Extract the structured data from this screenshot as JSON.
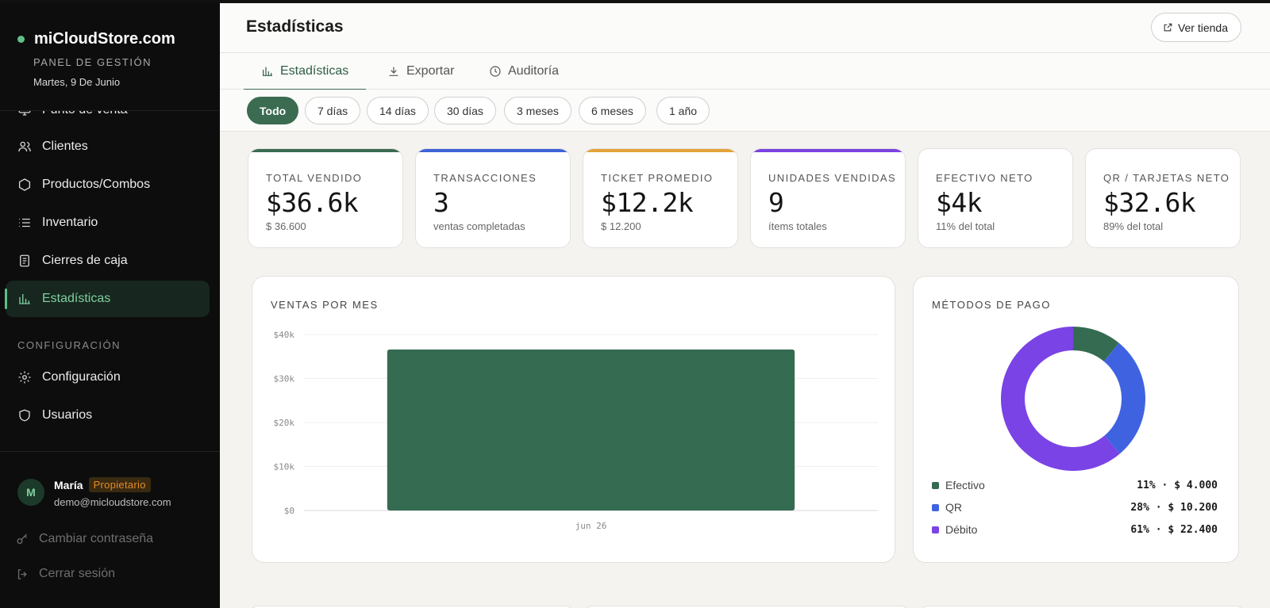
{
  "sidebar": {
    "brand": "miCloudStore.com",
    "subtitle": "PANEL DE GESTIÓN",
    "date": "Martes, 9 De Junio",
    "nav": {
      "punto_venta": "Punto de venta",
      "clientes": "Clientes",
      "productos": "Productos/Combos",
      "inventario": "Inventario",
      "cierres": "Cierres de caja",
      "estadisticas": "Estadísticas"
    },
    "config_section": "CONFIGURACIÓN",
    "config_nav": {
      "configuracion": "Configuración",
      "usuarios": "Usuarios"
    },
    "user": {
      "initial": "M",
      "name": "María",
      "role": "Propietario",
      "email": "demo@micloudstore.com"
    },
    "change_password": "Cambiar contraseña",
    "logout": "Cerrar sesión"
  },
  "header": {
    "title": "Estadísticas",
    "store_button": "Ver tienda"
  },
  "tabs": {
    "estadisticas": "Estadísticas",
    "exportar": "Exportar",
    "auditoria": "Auditoría"
  },
  "filters": [
    "Todo",
    "7 días",
    "14 días",
    "30 días",
    "3 meses",
    "6 meses",
    "1 año"
  ],
  "kpis": [
    {
      "label": "TOTAL VENDIDO",
      "value": "$36.6k",
      "sub": "$ 36.600",
      "color": "#3b6b51"
    },
    {
      "label": "TRANSACCIONES",
      "value": "3",
      "sub": "ventas completadas",
      "color": "#3f63d6"
    },
    {
      "label": "TICKET PROMEDIO",
      "value": "$12.2k",
      "sub": "$ 12.200",
      "color": "#e3a23a"
    },
    {
      "label": "UNIDADES VENDIDAS",
      "value": "9",
      "sub": "ítems totales",
      "color": "#7a43df"
    },
    {
      "label": "EFECTIVO NETO",
      "value": "$4k",
      "sub": "11% del total",
      "color": "#ffffff"
    },
    {
      "label": "QR / TARJETAS NETO",
      "value": "$32.6k",
      "sub": "89% del total",
      "color": "#ffffff"
    }
  ],
  "monthly_panel": {
    "title": "VENTAS POR MES"
  },
  "payment_panel": {
    "title": "MÉTODOS DE PAGO"
  },
  "chart_data": [
    {
      "type": "bar",
      "title": "VENTAS POR MES",
      "categories": [
        "jun 26"
      ],
      "values": [
        36600
      ],
      "ylim": [
        0,
        40000
      ],
      "yticks": [
        "$0",
        "$10k",
        "$20k",
        "$30k",
        "$40k"
      ],
      "grid": true,
      "color": "#356b51"
    },
    {
      "type": "pie",
      "title": "MÉTODOS DE PAGO",
      "donut": true,
      "slices": [
        {
          "name": "Efectivo",
          "value": 4000,
          "pct": "11%",
          "amount": "$ 4.000",
          "label": "11% · $ 4.000",
          "color": "#356b51"
        },
        {
          "name": "QR",
          "value": 10200,
          "pct": "28%",
          "amount": "$ 10.200",
          "label": "28% · $ 10.200",
          "color": "#3f63e0"
        },
        {
          "name": "Débito",
          "value": 22400,
          "pct": "61%",
          "amount": "$ 22.400",
          "label": "61% · $ 22.400",
          "color": "#7a43e6"
        }
      ]
    }
  ]
}
